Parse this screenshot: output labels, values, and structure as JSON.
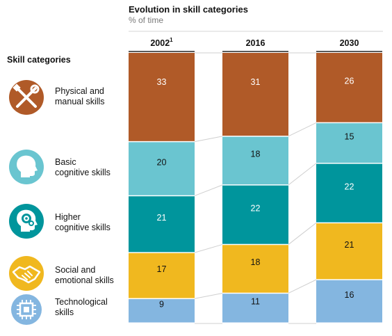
{
  "header": {
    "title": "Evolution in skill categories",
    "subtitle": "% of time"
  },
  "legend_heading": "Skill categories",
  "footnote_marker": "1",
  "chart_data": {
    "type": "bar",
    "stacked": true,
    "title": "Evolution in skill categories",
    "subtitle": "% of time",
    "categories": [
      "2002",
      "2016",
      "2030"
    ],
    "series": [
      {
        "name": "Physical and manual skills",
        "values": [
          33,
          31,
          26
        ]
      },
      {
        "name": "Basic cognitive skills",
        "values": [
          20,
          18,
          15
        ]
      },
      {
        "name": "Higher cognitive skills",
        "values": [
          21,
          22,
          22
        ]
      },
      {
        "name": "Social and emotional skills",
        "values": [
          17,
          18,
          21
        ]
      },
      {
        "name": "Technological skills",
        "values": [
          9,
          11,
          16
        ]
      }
    ],
    "legend_position": "left"
  },
  "skills": [
    {
      "line1": "Physical and",
      "line2": "manual skills",
      "icon": "tools-icon",
      "color": "#b05a28",
      "label_color": "#ffffff"
    },
    {
      "line1": "Basic",
      "line2": "cognitive skills",
      "icon": "head-icon",
      "color": "#6ac5d0",
      "label_color": "#111111"
    },
    {
      "line1": "Higher",
      "line2": "cognitive skills",
      "icon": "gear-head-icon",
      "color": "#00959c",
      "label_color": "#ffffff"
    },
    {
      "line1": "Social and",
      "line2": "emotional skills",
      "icon": "handshake-icon",
      "color": "#f0b81f",
      "label_color": "#111111"
    },
    {
      "line1": "Technological",
      "line2": "skills",
      "icon": "chip-icon",
      "color": "#84b6e0",
      "label_color": "#111111"
    }
  ]
}
